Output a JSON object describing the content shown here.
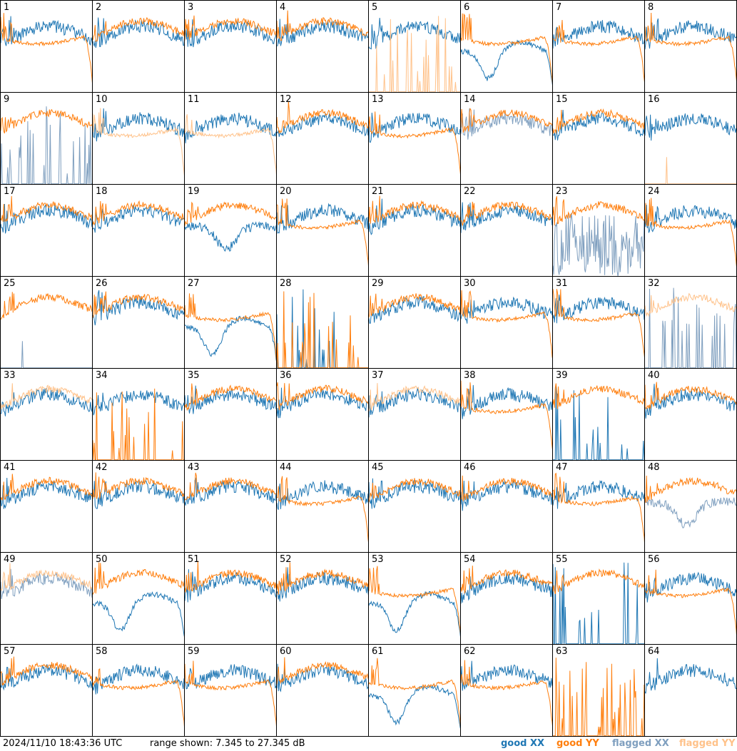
{
  "footer": {
    "timestamp": "2024/11/10 18:43:36 UTC",
    "range": "range shown: 7.345 to 27.345 dB",
    "legend": [
      {
        "id": "good_xx",
        "label": "good XX",
        "color": "#1f77b4"
      },
      {
        "id": "good_yy",
        "label": "good YY",
        "color": "#ff7f0e"
      },
      {
        "id": "flagged_xx",
        "label": "flagged XX",
        "color": "#7f9fbf"
      },
      {
        "id": "flagged_yy",
        "label": "flagged YY",
        "color": "#ffc28a"
      }
    ]
  },
  "chart_data": {
    "type": "line",
    "title": "",
    "layout": "8x8 grid of small-multiple spectra",
    "y_range_db": [
      7.345,
      27.345
    ],
    "series_styles": [
      "good XX",
      "good YY",
      "flagged XX",
      "flagged YY"
    ],
    "panels": [
      {
        "n": 1,
        "xx": "good",
        "yy": "good",
        "xx_shape": "normal",
        "yy_shape": "droop"
      },
      {
        "n": 2,
        "xx": "good",
        "yy": "good",
        "xx_shape": "normal",
        "yy_shape": "normal"
      },
      {
        "n": 3,
        "xx": "good",
        "yy": "good",
        "xx_shape": "normal",
        "yy_shape": "normal"
      },
      {
        "n": 4,
        "xx": "good",
        "yy": "good",
        "xx_shape": "normal",
        "yy_shape": "normal"
      },
      {
        "n": 5,
        "xx": "good",
        "yy": "flagged",
        "xx_shape": "normal",
        "yy_shape": "spikes"
      },
      {
        "n": 6,
        "xx": "good",
        "yy": "good",
        "xx_shape": "dip",
        "yy_shape": "droop"
      },
      {
        "n": 7,
        "xx": "good",
        "yy": "good",
        "xx_shape": "normal",
        "yy_shape": "droop"
      },
      {
        "n": 8,
        "xx": "good",
        "yy": "good",
        "xx_shape": "normal",
        "yy_shape": "droop"
      },
      {
        "n": 9,
        "xx": "flagged",
        "yy": "good",
        "xx_shape": "spikes",
        "yy_shape": "normal"
      },
      {
        "n": 10,
        "xx": "good",
        "yy": "flagged",
        "xx_shape": "normal",
        "yy_shape": "droop"
      },
      {
        "n": 11,
        "xx": "good",
        "yy": "flagged",
        "xx_shape": "normal",
        "yy_shape": "droop"
      },
      {
        "n": 12,
        "xx": "good",
        "yy": "good",
        "xx_shape": "normal",
        "yy_shape": "normal"
      },
      {
        "n": 13,
        "xx": "good",
        "yy": "good",
        "xx_shape": "normal",
        "yy_shape": "droop"
      },
      {
        "n": 14,
        "xx": "flagged",
        "yy": "good",
        "xx_shape": "normal",
        "yy_shape": "normal"
      },
      {
        "n": 15,
        "xx": "good",
        "yy": "good",
        "xx_shape": "normal",
        "yy_shape": "normal"
      },
      {
        "n": 16,
        "xx": "good",
        "yy": "flagged",
        "xx_shape": "normal",
        "yy_shape": "spike_one"
      },
      {
        "n": 17,
        "xx": "good",
        "yy": "good",
        "xx_shape": "normal",
        "yy_shape": "normal"
      },
      {
        "n": 18,
        "xx": "good",
        "yy": "good",
        "xx_shape": "normal",
        "yy_shape": "normal"
      },
      {
        "n": 19,
        "xx": "good",
        "yy": "good",
        "xx_shape": "lowdip",
        "yy_shape": "normal"
      },
      {
        "n": 20,
        "xx": "good",
        "yy": "good",
        "xx_shape": "normal",
        "yy_shape": "droop"
      },
      {
        "n": 21,
        "xx": "good",
        "yy": "good",
        "xx_shape": "normal",
        "yy_shape": "normal"
      },
      {
        "n": 22,
        "xx": "good",
        "yy": "good",
        "xx_shape": "normal",
        "yy_shape": "normal"
      },
      {
        "n": 23,
        "xx": "flagged",
        "yy": "good",
        "xx_shape": "noisy",
        "yy_shape": "normal"
      },
      {
        "n": 24,
        "xx": "good",
        "yy": "good",
        "xx_shape": "normal",
        "yy_shape": "droop"
      },
      {
        "n": 25,
        "xx": "flagged",
        "yy": "good",
        "xx_shape": "spike_one",
        "yy_shape": "normal"
      },
      {
        "n": 26,
        "xx": "good",
        "yy": "good",
        "xx_shape": "normal",
        "yy_shape": "normal"
      },
      {
        "n": 27,
        "xx": "good",
        "yy": "good",
        "xx_shape": "dip",
        "yy_shape": "droop"
      },
      {
        "n": 28,
        "xx": "good",
        "yy": "good",
        "xx_shape": "spikes",
        "yy_shape": "spikes"
      },
      {
        "n": 29,
        "xx": "good",
        "yy": "good",
        "xx_shape": "normal",
        "yy_shape": "normal"
      },
      {
        "n": 30,
        "xx": "good",
        "yy": "good",
        "xx_shape": "normal",
        "yy_shape": "droop"
      },
      {
        "n": 31,
        "xx": "good",
        "yy": "good",
        "xx_shape": "normal",
        "yy_shape": "droop"
      },
      {
        "n": 32,
        "xx": "flagged",
        "yy": "flagged",
        "xx_shape": "spikes",
        "yy_shape": "normal"
      },
      {
        "n": 33,
        "xx": "good",
        "yy": "flagged",
        "xx_shape": "normal",
        "yy_shape": "normal"
      },
      {
        "n": 34,
        "xx": "good",
        "yy": "good",
        "xx_shape": "normal",
        "yy_shape": "spikes"
      },
      {
        "n": 35,
        "xx": "good",
        "yy": "good",
        "xx_shape": "normal",
        "yy_shape": "normal"
      },
      {
        "n": 36,
        "xx": "good",
        "yy": "good",
        "xx_shape": "normal",
        "yy_shape": "normal"
      },
      {
        "n": 37,
        "xx": "good",
        "yy": "flagged",
        "xx_shape": "normal",
        "yy_shape": "normal"
      },
      {
        "n": 38,
        "xx": "good",
        "yy": "good",
        "xx_shape": "normal",
        "yy_shape": "droop"
      },
      {
        "n": 39,
        "xx": "good",
        "yy": "good",
        "xx_shape": "spikes",
        "yy_shape": "normal"
      },
      {
        "n": 40,
        "xx": "good",
        "yy": "good",
        "xx_shape": "normal",
        "yy_shape": "normal"
      },
      {
        "n": 41,
        "xx": "good",
        "yy": "good",
        "xx_shape": "normal",
        "yy_shape": "normal"
      },
      {
        "n": 42,
        "xx": "good",
        "yy": "good",
        "xx_shape": "normal",
        "yy_shape": "normal"
      },
      {
        "n": 43,
        "xx": "good",
        "yy": "good",
        "xx_shape": "normal",
        "yy_shape": "normal"
      },
      {
        "n": 44,
        "xx": "good",
        "yy": "good",
        "xx_shape": "normal",
        "yy_shape": "droop"
      },
      {
        "n": 45,
        "xx": "good",
        "yy": "good",
        "xx_shape": "normal",
        "yy_shape": "normal"
      },
      {
        "n": 46,
        "xx": "good",
        "yy": "good",
        "xx_shape": "normal",
        "yy_shape": "normal"
      },
      {
        "n": 47,
        "xx": "good",
        "yy": "good",
        "xx_shape": "normal",
        "yy_shape": "droop"
      },
      {
        "n": 48,
        "xx": "flagged",
        "yy": "good",
        "xx_shape": "lowdip",
        "yy_shape": "normal"
      },
      {
        "n": 49,
        "xx": "flagged",
        "yy": "flagged",
        "xx_shape": "normal",
        "yy_shape": "normal"
      },
      {
        "n": 50,
        "xx": "good",
        "yy": "good",
        "xx_shape": "dip",
        "yy_shape": "normal"
      },
      {
        "n": 51,
        "xx": "good",
        "yy": "good",
        "xx_shape": "normal",
        "yy_shape": "normal"
      },
      {
        "n": 52,
        "xx": "good",
        "yy": "good",
        "xx_shape": "normal",
        "yy_shape": "normal"
      },
      {
        "n": 53,
        "xx": "good",
        "yy": "good",
        "xx_shape": "dip",
        "yy_shape": "droop"
      },
      {
        "n": 54,
        "xx": "good",
        "yy": "good",
        "xx_shape": "normal",
        "yy_shape": "normal"
      },
      {
        "n": 55,
        "xx": "good",
        "yy": "good",
        "xx_shape": "spikes",
        "yy_shape": "normal"
      },
      {
        "n": 56,
        "xx": "good",
        "yy": "good",
        "xx_shape": "normal",
        "yy_shape": "droop"
      },
      {
        "n": 57,
        "xx": "good",
        "yy": "good",
        "xx_shape": "normal",
        "yy_shape": "normal"
      },
      {
        "n": 58,
        "xx": "good",
        "yy": "good",
        "xx_shape": "normal",
        "yy_shape": "droop"
      },
      {
        "n": 59,
        "xx": "good",
        "yy": "good",
        "xx_shape": "normal",
        "yy_shape": "droop"
      },
      {
        "n": 60,
        "xx": "good",
        "yy": "good",
        "xx_shape": "normal",
        "yy_shape": "normal"
      },
      {
        "n": 61,
        "xx": "good",
        "yy": "good",
        "xx_shape": "dip",
        "yy_shape": "droop"
      },
      {
        "n": 62,
        "xx": "good",
        "yy": "good",
        "xx_shape": "normal",
        "yy_shape": "droop"
      },
      {
        "n": 63,
        "xx": "none",
        "yy": "good",
        "xx_shape": "none",
        "yy_shape": "spikes"
      },
      {
        "n": 64,
        "xx": "good",
        "yy": "none",
        "xx_shape": "normal",
        "yy_shape": "none"
      }
    ]
  }
}
